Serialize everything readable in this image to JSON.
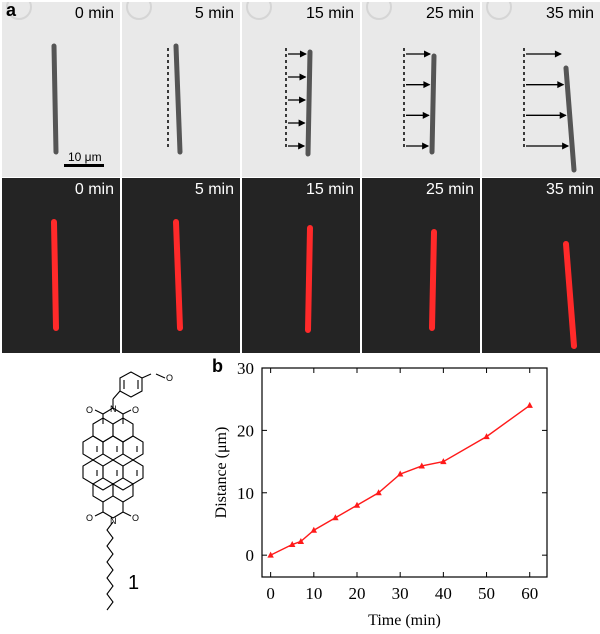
{
  "figure": {
    "panel_a_label": "a",
    "panel_b_label": "b",
    "scale_bar_label": "10 μm",
    "compound_label": "1",
    "frames": [
      {
        "time": "0 min",
        "arrows": 0
      },
      {
        "time": "5 min",
        "arrows": 0
      },
      {
        "time": "15 min",
        "arrows": 5
      },
      {
        "time": "25 min",
        "arrows": 4
      },
      {
        "time": "35 min",
        "arrows": 4
      }
    ],
    "colors": {
      "bright_background": "#e9e9e9",
      "dark_background": "#242424",
      "rod_bright": "#555555",
      "rod_fluorescent": "#ff2a2a",
      "plot_line": "#ff1a1a"
    },
    "chem_atom_labels": {
      "oxygen": "O",
      "nitrogen": "N"
    }
  },
  "chart_data": {
    "type": "line",
    "x": [
      0,
      5,
      7,
      10,
      15,
      20,
      25,
      30,
      35,
      40,
      50,
      60
    ],
    "y": [
      0,
      1.7,
      2.2,
      4,
      6,
      8,
      10,
      13,
      14.3,
      15,
      19,
      24
    ],
    "xlabel": "Time (min)",
    "ylabel": "Distance (μm)",
    "xlim": [
      -2,
      64
    ],
    "ylim": [
      -3.5,
      30
    ],
    "xticks": [
      0,
      10,
      20,
      30,
      40,
      50,
      60
    ],
    "yticks": [
      0,
      10,
      20,
      30
    ],
    "marker": "triangle",
    "color": "#ff1a1a",
    "grid": false
  }
}
